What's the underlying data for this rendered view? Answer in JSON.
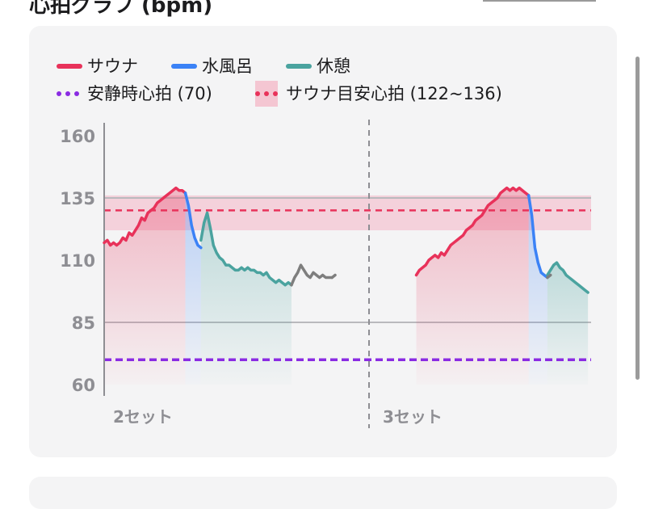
{
  "header": {
    "title": "心拍グラフ (bpm)"
  },
  "legend": [
    {
      "label": "サウナ",
      "color": "#e8325a",
      "style": "solid"
    },
    {
      "label": "水風呂",
      "color": "#3b82f6",
      "style": "solid"
    },
    {
      "label": "休憩",
      "color": "#4aa39f",
      "style": "solid"
    },
    {
      "label": "安静時心拍 (70)",
      "color": "#8a2be2",
      "style": "dotted"
    },
    {
      "label": "サウナ目安心拍 (122~136)",
      "color": "#e8325a",
      "style": "band"
    }
  ],
  "chart_data": {
    "type": "line",
    "ylim": [
      60,
      160
    ],
    "yticks": [
      160,
      135,
      110,
      85,
      60
    ],
    "reference_lines": [
      {
        "name": "安静時心拍",
        "value": 70,
        "color": "#8a2be2",
        "style": "dotted"
      },
      {
        "name": "サウナ目安心拍",
        "range": [
          122,
          136
        ],
        "mid": 130,
        "color": "#e8325a",
        "style": "band"
      }
    ],
    "gridlines": [
      135,
      85
    ],
    "set_labels": [
      "2セット",
      "3セット"
    ],
    "series": [
      {
        "name": "サウナ",
        "color": "#e8325a",
        "fill": "rgba(232,50,90,0.22)",
        "segments": [
          [
            [
              0,
              117
            ],
            [
              1,
              118
            ],
            [
              2,
              116
            ],
            [
              3,
              117
            ],
            [
              4,
              116
            ],
            [
              5,
              117
            ],
            [
              6,
              119
            ],
            [
              7,
              118
            ],
            [
              8,
              121
            ],
            [
              9,
              120
            ],
            [
              10,
              122
            ],
            [
              11,
              124
            ],
            [
              12,
              127
            ],
            [
              13,
              126
            ],
            [
              14,
              129
            ],
            [
              15,
              130
            ],
            [
              16,
              131
            ],
            [
              17,
              133
            ],
            [
              18,
              134
            ],
            [
              19,
              135
            ],
            [
              20,
              136
            ],
            [
              21,
              137
            ],
            [
              22,
              138
            ],
            [
              23,
              139
            ],
            [
              24,
              138
            ],
            [
              25,
              138
            ],
            [
              26,
              137
            ]
          ],
          [
            [
              100,
              104
            ],
            [
              101,
              106
            ],
            [
              102,
              107
            ],
            [
              103,
              108
            ],
            [
              104,
              110
            ],
            [
              105,
              111
            ],
            [
              106,
              112
            ],
            [
              107,
              111
            ],
            [
              108,
              113
            ],
            [
              109,
              112
            ],
            [
              110,
              114
            ],
            [
              111,
              116
            ],
            [
              112,
              117
            ],
            [
              113,
              118
            ],
            [
              114,
              119
            ],
            [
              115,
              120
            ],
            [
              116,
              122
            ],
            [
              117,
              123
            ],
            [
              118,
              124
            ],
            [
              119,
              126
            ],
            [
              120,
              127
            ],
            [
              121,
              128
            ],
            [
              122,
              130
            ],
            [
              123,
              132
            ],
            [
              124,
              133
            ],
            [
              125,
              134
            ],
            [
              126,
              135
            ],
            [
              127,
              137
            ],
            [
              128,
              138
            ],
            [
              129,
              139
            ],
            [
              130,
              138
            ],
            [
              131,
              139
            ],
            [
              132,
              138
            ],
            [
              133,
              139
            ],
            [
              134,
              138
            ],
            [
              135,
              137
            ],
            [
              136,
              136
            ]
          ]
        ]
      },
      {
        "name": "水風呂",
        "color": "#3b82f6",
        "fill": "rgba(59,130,246,0.22)",
        "segments": [
          [
            [
              26,
              137
            ],
            [
              27,
              132
            ],
            [
              28,
              124
            ],
            [
              29,
              119
            ],
            [
              30,
              116
            ],
            [
              31,
              115
            ]
          ],
          [
            [
              136,
              136
            ],
            [
              137,
              128
            ],
            [
              138,
              115
            ],
            [
              139,
              109
            ],
            [
              140,
              105
            ],
            [
              141,
              104
            ],
            [
              142,
              103
            ]
          ]
        ]
      },
      {
        "name": "休憩",
        "color": "#4aa39f",
        "fill": "rgba(74,163,159,0.22)",
        "segments": [
          [
            [
              31,
              118
            ],
            [
              32,
              125
            ],
            [
              33,
              129
            ],
            [
              34,
              123
            ],
            [
              35,
              116
            ],
            [
              36,
              113
            ],
            [
              37,
              111
            ],
            [
              38,
              110
            ],
            [
              39,
              108
            ],
            [
              40,
              108
            ],
            [
              41,
              107
            ],
            [
              42,
              106
            ],
            [
              43,
              106
            ],
            [
              44,
              107
            ],
            [
              45,
              106
            ],
            [
              46,
              107
            ],
            [
              47,
              106
            ],
            [
              48,
              106
            ],
            [
              49,
              105
            ],
            [
              50,
              105
            ],
            [
              51,
              104
            ],
            [
              52,
              105
            ],
            [
              53,
              103
            ],
            [
              54,
              102
            ],
            [
              55,
              101
            ],
            [
              56,
              102
            ],
            [
              57,
              101
            ],
            [
              58,
              100
            ],
            [
              59,
              101
            ],
            [
              60,
              100
            ]
          ],
          [
            [
              142,
              104
            ],
            [
              143,
              106
            ],
            [
              144,
              108
            ],
            [
              145,
              109
            ],
            [
              146,
              107
            ],
            [
              147,
              106
            ],
            [
              148,
              104
            ],
            [
              149,
              103
            ],
            [
              150,
              102
            ],
            [
              151,
              101
            ],
            [
              152,
              100
            ],
            [
              153,
              99
            ],
            [
              154,
              98
            ],
            [
              155,
              97
            ]
          ]
        ]
      },
      {
        "name": "gap",
        "color": "#7e7e7e",
        "fill": "none",
        "segments": [
          [
            [
              60,
              100
            ],
            [
              61,
              103
            ],
            [
              62,
              105
            ],
            [
              63,
              108
            ],
            [
              64,
              106
            ],
            [
              65,
              104
            ],
            [
              66,
              103
            ],
            [
              67,
              105
            ],
            [
              68,
              104
            ],
            [
              69,
              103
            ],
            [
              70,
              104
            ],
            [
              71,
              103
            ],
            [
              72,
              103
            ],
            [
              73,
              103
            ]
          ],
          [
            [
              73,
              103
            ],
            [
              74,
              104
            ]
          ],
          [
            [
              142,
              103
            ],
            [
              143,
              104
            ]
          ]
        ]
      }
    ]
  }
}
